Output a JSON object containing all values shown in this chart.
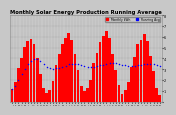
{
  "title": "Monthly Solar Energy Production Running Average",
  "title_fontsize": 3.8,
  "background_color": "#c8c8c8",
  "plot_bg_color": "#c8c8c8",
  "bar_color": "#ff0000",
  "avg_color": "#0000ff",
  "ylim": [
    0,
    800
  ],
  "ytick_labels": [
    "",
    "1",
    "2",
    "3",
    "4",
    "5",
    "6",
    "7",
    "8"
  ],
  "ytick_vals": [
    0,
    100,
    200,
    300,
    400,
    500,
    600,
    700,
    800
  ],
  "legend_entries": [
    "Monthly kWh",
    "Running Avg"
  ],
  "legend_colors": [
    "#ff0000",
    "#0000ff"
  ],
  "bar_values": [
    120,
    180,
    310,
    400,
    510,
    560,
    580,
    530,
    400,
    260,
    130,
    85,
    105,
    195,
    340,
    440,
    530,
    590,
    640,
    575,
    440,
    290,
    145,
    95,
    125,
    205,
    355,
    455,
    550,
    610,
    655,
    585,
    445,
    295,
    150,
    75,
    110,
    185,
    325,
    415,
    535,
    575,
    625,
    560,
    425,
    280,
    125,
    65
  ],
  "avg_values": [
    120,
    148,
    203,
    252,
    304,
    346,
    381,
    393,
    394,
    378,
    352,
    325,
    315,
    306,
    309,
    315,
    323,
    334,
    346,
    352,
    352,
    349,
    341,
    332,
    324,
    321,
    323,
    328,
    335,
    343,
    353,
    357,
    357,
    355,
    350,
    342,
    336,
    332,
    330,
    331,
    336,
    341,
    347,
    349,
    348,
    345,
    338,
    329
  ]
}
